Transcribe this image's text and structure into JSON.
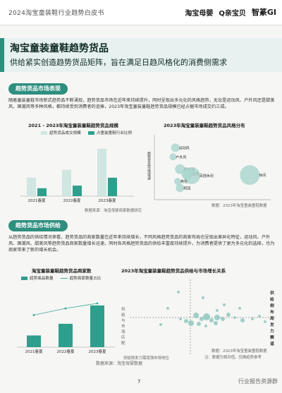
{
  "header": {
    "title": "2024淘宝童装鞋行业趋势白皮书",
    "logos": [
      "淘宝母婴",
      "Q亲宝贝",
      "智篆GI"
    ]
  },
  "page": {
    "title": "淘宝童装童鞋趋势货品",
    "subtitle": "供给紧实创造趋势货品矩阵，旨在满足日趋风格化的消费侧需求"
  },
  "section1": {
    "pill": "趋势货品市场表现",
    "body": "随着童装童鞋市场新式趋势品不断涌现，趋势货品市场在近年来持续提升，同时呈现出多元化的风格趋势，无论是运动风、户外风还是甜美风、国潮风等多种风格，都持续受到消费者的追捧，2023年淘宝童装童鞋趋势货品规模已经占据市场成交约三成。"
  },
  "chart1": {
    "title": "2021 - 2023年淘宝童装童鞋趋势货品规模",
    "legend": [
      "趋势货品成交规模",
      "占童装童鞋行业比例"
    ],
    "source": "数据来源：淘宝母婴商家数据研究",
    "chart_data": {
      "type": "bar",
      "categories": [
        "2021春夏",
        "2022春夏",
        "2023春夏"
      ],
      "series": [
        {
          "name": "趋势货品成交规模",
          "values": [
            28,
            40,
            72
          ]
        },
        {
          "name": "占童装童鞋行业比例",
          "values": [
            12,
            16,
            28
          ]
        }
      ]
    }
  },
  "chart2": {
    "title": "2023年淘宝童装童鞋趋势货品风格分布",
    "yaxis": "趋势货品市场增速",
    "source": "数据：2023年淘宝童装童鞋数据",
    "chart_data": {
      "type": "scatter",
      "points": [
        {
          "label": "运动风",
          "x": 18,
          "y": 80,
          "size": 6
        },
        {
          "label": "户外风",
          "x": 16,
          "y": 66,
          "size": 5
        },
        {
          "label": "甜美风",
          "x": 22,
          "y": 47,
          "size": 7
        },
        {
          "label": "国潮",
          "x": 28,
          "y": 40,
          "size": 8
        },
        {
          "label": "百搭休闲",
          "x": 32,
          "y": 37,
          "size": 12
        },
        {
          "label": "英伦",
          "x": 20,
          "y": 28,
          "size": 5
        },
        {
          "label": "校园",
          "x": 22,
          "y": 18,
          "size": 6
        },
        {
          "label": "休闲",
          "x": 82,
          "y": 38,
          "size": 14
        }
      ]
    }
  },
  "section2": {
    "pill": "趋势货品市场供给",
    "body": "从趋势货品的供给情况来看，趋势货品的商家数量在近年来持续增长，不同风格趋势货品的商家布局也呈现出差异化特征，运动风、户外风、国潮风、甜美风等趋势货品商家数量增长迅速，同时各风格趋势货品的供给丰富度持续提升，为消费者提供了更为多元化的选择，也为商家带来了新的增长机会。"
  },
  "chart3": {
    "title": "淘宝童装童鞋趋势货品商家数",
    "legend": [
      "趋势商品数量",
      "趋势商家数量占比"
    ],
    "chart_data": {
      "type": "bar",
      "categories": [
        "2021春夏",
        "2022春夏",
        "2023春夏"
      ],
      "series": [
        {
          "name": "趋势商品数量",
          "values": [
            14,
            28,
            50
          ]
        },
        {
          "name": "趋势商家数量占比",
          "values": [
            30,
            38,
            44
          ]
        }
      ]
    }
  },
  "chart4": {
    "title": "2023年淘宝童装童鞋趋势货品供给与市场增长关系",
    "left_label": "供给与市场匹配",
    "right_label": "供给侧布局发力赛道",
    "bottom_label": "供给侧发力需增强市场地位",
    "source": "数据：2023年淘宝童装童鞋数据",
    "source2": "注：数据为相对值，仅做趋势参考"
  },
  "footer": {
    "note": "数据来源：淘宝母婴数据",
    "page_number": "7",
    "watermark": "行业报告资源群"
  },
  "colors": {
    "accent": "#2e8f7f",
    "bar_light": "#cfe6e1",
    "bar_dark": "#2e9f8c"
  }
}
